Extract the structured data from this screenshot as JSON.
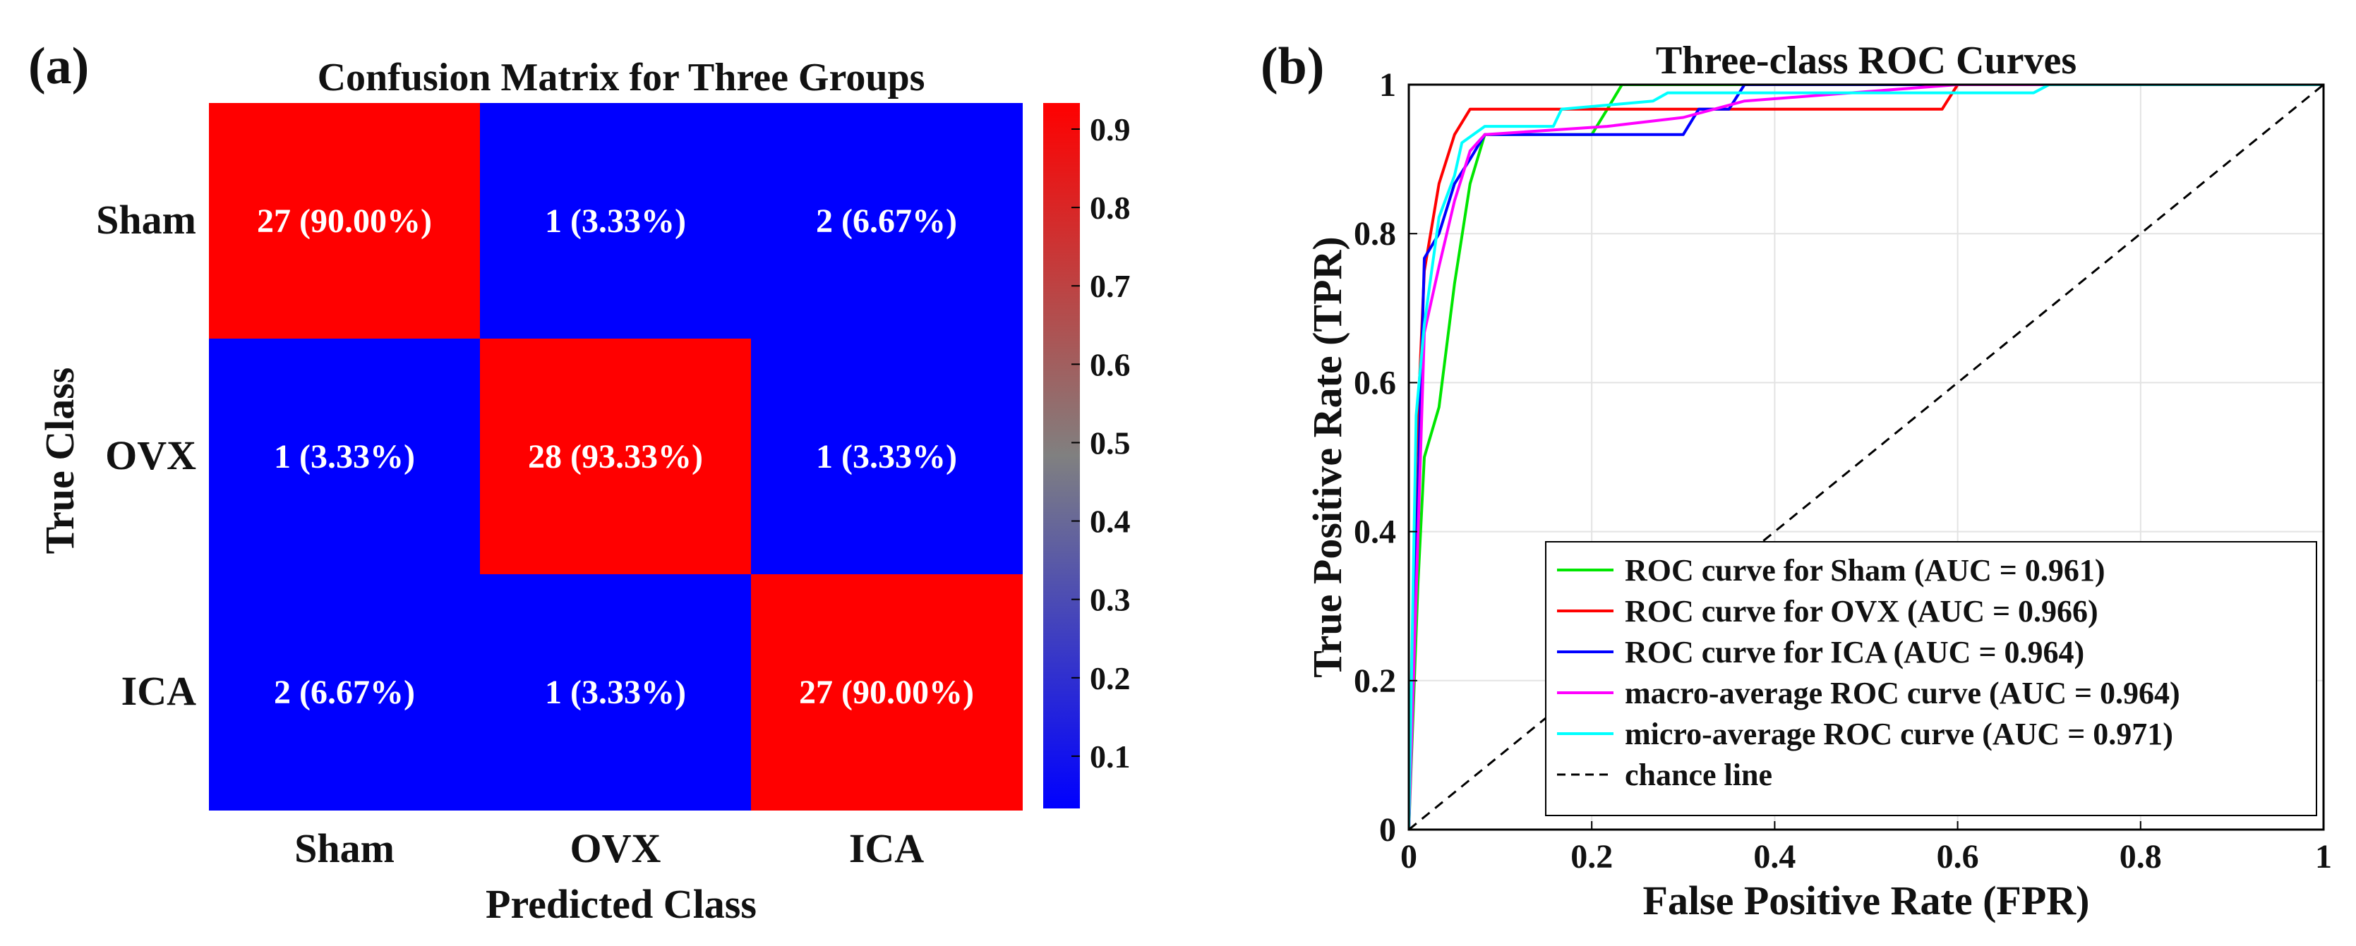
{
  "panel_a": {
    "label": "(a)",
    "title": "Confusion Matrix for Three Groups",
    "xlabel": "Predicted Class",
    "ylabel": "True Class"
  },
  "panel_b": {
    "label": "(b)",
    "title": "Three-class ROC Curves",
    "xlabel": "False Positive Rate (FPR)",
    "ylabel": "True Positive Rate (TPR)"
  },
  "chart_data": [
    {
      "type": "heatmap",
      "title": "Confusion Matrix for Three Groups",
      "xlabel": "Predicted Class",
      "ylabel": "True Class",
      "x_categories": [
        "Sham",
        "OVX",
        "ICA"
      ],
      "y_categories": [
        "Sham",
        "OVX",
        "ICA"
      ],
      "values": [
        [
          0.9,
          0.0333,
          0.0667
        ],
        [
          0.0333,
          0.9333,
          0.0333
        ],
        [
          0.0667,
          0.0333,
          0.9
        ]
      ],
      "cell_labels": [
        [
          "27 (90.00%)",
          "1 (3.33%)",
          "2 (6.67%)"
        ],
        [
          "1 (3.33%)",
          "28 (93.33%)",
          "1 (3.33%)"
        ],
        [
          "2 (6.67%)",
          "1 (3.33%)",
          "27 (90.00%)"
        ]
      ],
      "colorbar": {
        "range": [
          0.0333,
          0.9333
        ],
        "ticks": [
          0.1,
          0.2,
          0.3,
          0.4,
          0.5,
          0.6,
          0.7,
          0.8,
          0.9
        ],
        "tick_labels": [
          "0.1",
          "0.2",
          "0.3",
          "0.4",
          "0.5",
          "0.6",
          "0.7",
          "0.8",
          "0.9"
        ],
        "colors": [
          "#0000ff",
          "#808080",
          "#ff0000"
        ]
      }
    },
    {
      "type": "line",
      "title": "Three-class ROC Curves",
      "xlabel": "False Positive Rate (FPR)",
      "ylabel": "True Positive Rate (TPR)",
      "xlim": [
        0,
        1
      ],
      "ylim": [
        0,
        1
      ],
      "xticks": [
        0,
        0.2,
        0.4,
        0.6,
        0.8,
        1
      ],
      "xtick_labels": [
        "0",
        "0.2",
        "0.4",
        "0.6",
        "0.8",
        "1"
      ],
      "yticks": [
        0,
        0.2,
        0.4,
        0.6,
        0.8,
        1
      ],
      "ytick_labels": [
        "0",
        "0.2",
        "0.4",
        "0.6",
        "0.8",
        "1"
      ],
      "grid": true,
      "legend_position": "bottom-right",
      "series": [
        {
          "name": "ROC curve for Sham (AUC = 0.961)",
          "color": "#00e600",
          "dash": "solid",
          "points": [
            [
              0,
              0
            ],
            [
              0.01,
              0.33
            ],
            [
              0.017,
              0.5
            ],
            [
              0.033,
              0.567
            ],
            [
              0.05,
              0.733
            ],
            [
              0.067,
              0.867
            ],
            [
              0.083,
              0.933
            ],
            [
              0.2,
              0.933
            ],
            [
              0.217,
              0.967
            ],
            [
              0.233,
              1.0
            ],
            [
              1,
              1
            ]
          ]
        },
        {
          "name": "ROC curve for OVX (AUC = 0.966)",
          "color": "#ff0000",
          "dash": "solid",
          "points": [
            [
              0,
              0
            ],
            [
              0.008,
              0.5
            ],
            [
              0.017,
              0.75
            ],
            [
              0.033,
              0.867
            ],
            [
              0.05,
              0.933
            ],
            [
              0.067,
              0.967
            ],
            [
              0.583,
              0.967
            ],
            [
              0.6,
              1.0
            ],
            [
              1,
              1
            ]
          ]
        },
        {
          "name": "ROC curve for ICA (AUC = 0.964)",
          "color": "#0000ff",
          "dash": "solid",
          "points": [
            [
              0,
              0
            ],
            [
              0.017,
              0.767
            ],
            [
              0.033,
              0.8
            ],
            [
              0.05,
              0.867
            ],
            [
              0.067,
              0.9
            ],
            [
              0.083,
              0.933
            ],
            [
              0.3,
              0.933
            ],
            [
              0.317,
              0.967
            ],
            [
              0.35,
              0.967
            ],
            [
              0.367,
              1.0
            ],
            [
              1,
              1
            ]
          ]
        },
        {
          "name": "macro-average ROC curve (AUC = 0.964)",
          "color": "#ff00ff",
          "dash": "solid",
          "points": [
            [
              0,
              0
            ],
            [
              0.017,
              0.667
            ],
            [
              0.033,
              0.756
            ],
            [
              0.05,
              0.844
            ],
            [
              0.067,
              0.911
            ],
            [
              0.083,
              0.933
            ],
            [
              0.217,
              0.944
            ],
            [
              0.3,
              0.956
            ],
            [
              0.367,
              0.978
            ],
            [
              0.6,
              1.0
            ],
            [
              1,
              1
            ]
          ]
        },
        {
          "name": "micro-average ROC curve (AUC = 0.971)",
          "color": "#00ffff",
          "dash": "solid",
          "points": [
            [
              0,
              0
            ],
            [
              0.008,
              0.556
            ],
            [
              0.017,
              0.678
            ],
            [
              0.033,
              0.822
            ],
            [
              0.05,
              0.878
            ],
            [
              0.058,
              0.922
            ],
            [
              0.083,
              0.944
            ],
            [
              0.158,
              0.944
            ],
            [
              0.167,
              0.967
            ],
            [
              0.267,
              0.978
            ],
            [
              0.283,
              0.989
            ],
            [
              0.683,
              0.989
            ],
            [
              0.7,
              1.0
            ],
            [
              1,
              1
            ]
          ]
        },
        {
          "name": "chance line",
          "color": "#000000",
          "dash": "dashed",
          "points": [
            [
              0,
              0
            ],
            [
              1,
              1
            ]
          ]
        }
      ]
    }
  ]
}
